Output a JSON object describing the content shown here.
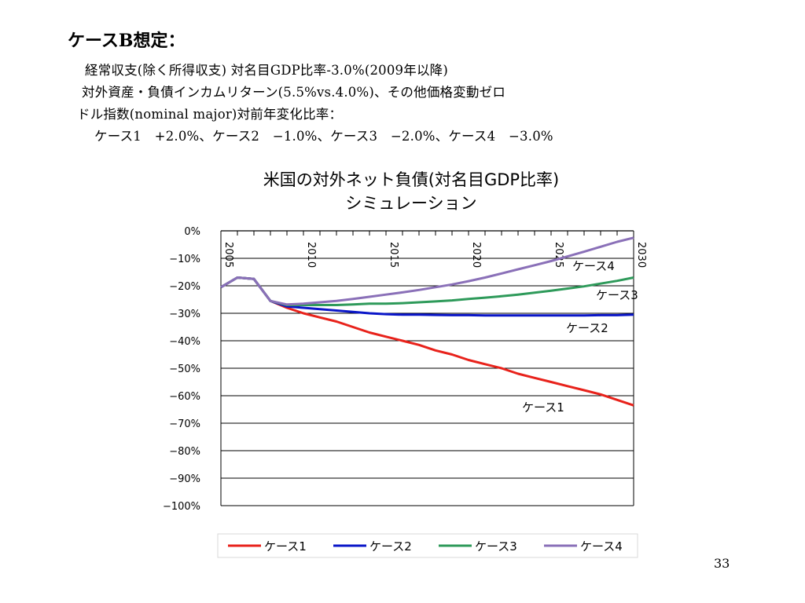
{
  "slide": {
    "title": "ケースB想定：",
    "notes": [
      "経常収支(除く所得収支) 対名目GDP比率-3.0%(2009年以降)",
      "対外資産・負債インカムリターン(5.5%vs.4.0%)、その他価格変動ゼロ",
      "ドル指数(nominal major)対前年変化比率：",
      "ケース1　+2.0%、ケース2　−1.0%、ケース3　−2.0%、ケース4　−3.0%"
    ],
    "page_number": "33"
  },
  "chart_data": {
    "type": "line",
    "title": [
      "米国の対外ネット負債(対名目GDP比率)",
      "シミュレーション"
    ],
    "x": [
      2005,
      2006,
      2007,
      2008,
      2009,
      2010,
      2011,
      2012,
      2013,
      2014,
      2015,
      2016,
      2017,
      2018,
      2019,
      2020,
      2021,
      2022,
      2023,
      2024,
      2025,
      2026,
      2027,
      2028,
      2029,
      2030
    ],
    "x_tick_labels": [
      {
        "x": 2005,
        "label": "2005"
      },
      {
        "x": 2010,
        "label": "2010"
      },
      {
        "x": 2015,
        "label": "2015"
      },
      {
        "x": 2020,
        "label": "2020"
      },
      {
        "x": 2025,
        "label": "2025"
      },
      {
        "x": 2030,
        "label": "2030"
      }
    ],
    "xlim": [
      2005,
      2030
    ],
    "ylim": [
      -100,
      0
    ],
    "y_ticks": [
      0,
      -10,
      -20,
      -30,
      -40,
      -50,
      -60,
      -70,
      -80,
      -90,
      -100
    ],
    "y_tick_labels": [
      "0%",
      "−10%",
      "−20%",
      "−30%",
      "−40%",
      "−50%",
      "−60%",
      "−70%",
      "−80%",
      "−90%",
      "−100%"
    ],
    "grid": true,
    "legend": "bottom",
    "series": [
      {
        "name": "ケース1",
        "color": "#e8221b",
        "values": [
          -20.5,
          -17.0,
          -17.5,
          -25.5,
          -28.0,
          -30.0,
          -31.5,
          -33.0,
          -35.0,
          -37.0,
          -38.5,
          -40.0,
          -41.5,
          -43.5,
          -45.0,
          -47.0,
          -48.5,
          -50.0,
          -52.0,
          -53.5,
          -55.0,
          -56.5,
          -58.0,
          -59.5,
          -61.5,
          -63.5
        ]
      },
      {
        "name": "ケース2",
        "color": "#0a16c8",
        "values": [
          -20.5,
          -17.0,
          -17.5,
          -25.5,
          -27.5,
          -28.0,
          -28.5,
          -29.0,
          -29.5,
          -30.0,
          -30.3,
          -30.5,
          -30.5,
          -30.6,
          -30.7,
          -30.7,
          -30.8,
          -30.8,
          -30.8,
          -30.8,
          -30.8,
          -30.8,
          -30.8,
          -30.7,
          -30.7,
          -30.5
        ]
      },
      {
        "name": "ケース3",
        "color": "#2e9a5a",
        "values": [
          -20.5,
          -17.0,
          -17.5,
          -25.5,
          -27.0,
          -27.0,
          -27.0,
          -27.0,
          -26.8,
          -26.5,
          -26.5,
          -26.3,
          -26.0,
          -25.7,
          -25.3,
          -24.8,
          -24.3,
          -23.8,
          -23.2,
          -22.5,
          -21.8,
          -21.0,
          -20.2,
          -19.2,
          -18.2,
          -17.0
        ]
      },
      {
        "name": "ケース4",
        "color": "#8a70b8",
        "values": [
          -20.5,
          -17.0,
          -17.5,
          -25.5,
          -26.8,
          -26.5,
          -26.0,
          -25.5,
          -24.8,
          -24.0,
          -23.2,
          -22.4,
          -21.5,
          -20.5,
          -19.5,
          -18.3,
          -17.0,
          -15.5,
          -14.0,
          -12.5,
          -11.0,
          -9.3,
          -7.6,
          -5.8,
          -4.0,
          -2.5
        ]
      }
    ],
    "series_labels": [
      {
        "series": "ケース4",
        "text": "ケース4"
      },
      {
        "series": "ケース3",
        "text": "ケース3"
      },
      {
        "series": "ケース2",
        "text": "ケース2"
      },
      {
        "series": "ケース1",
        "text": "ケース1"
      }
    ]
  }
}
